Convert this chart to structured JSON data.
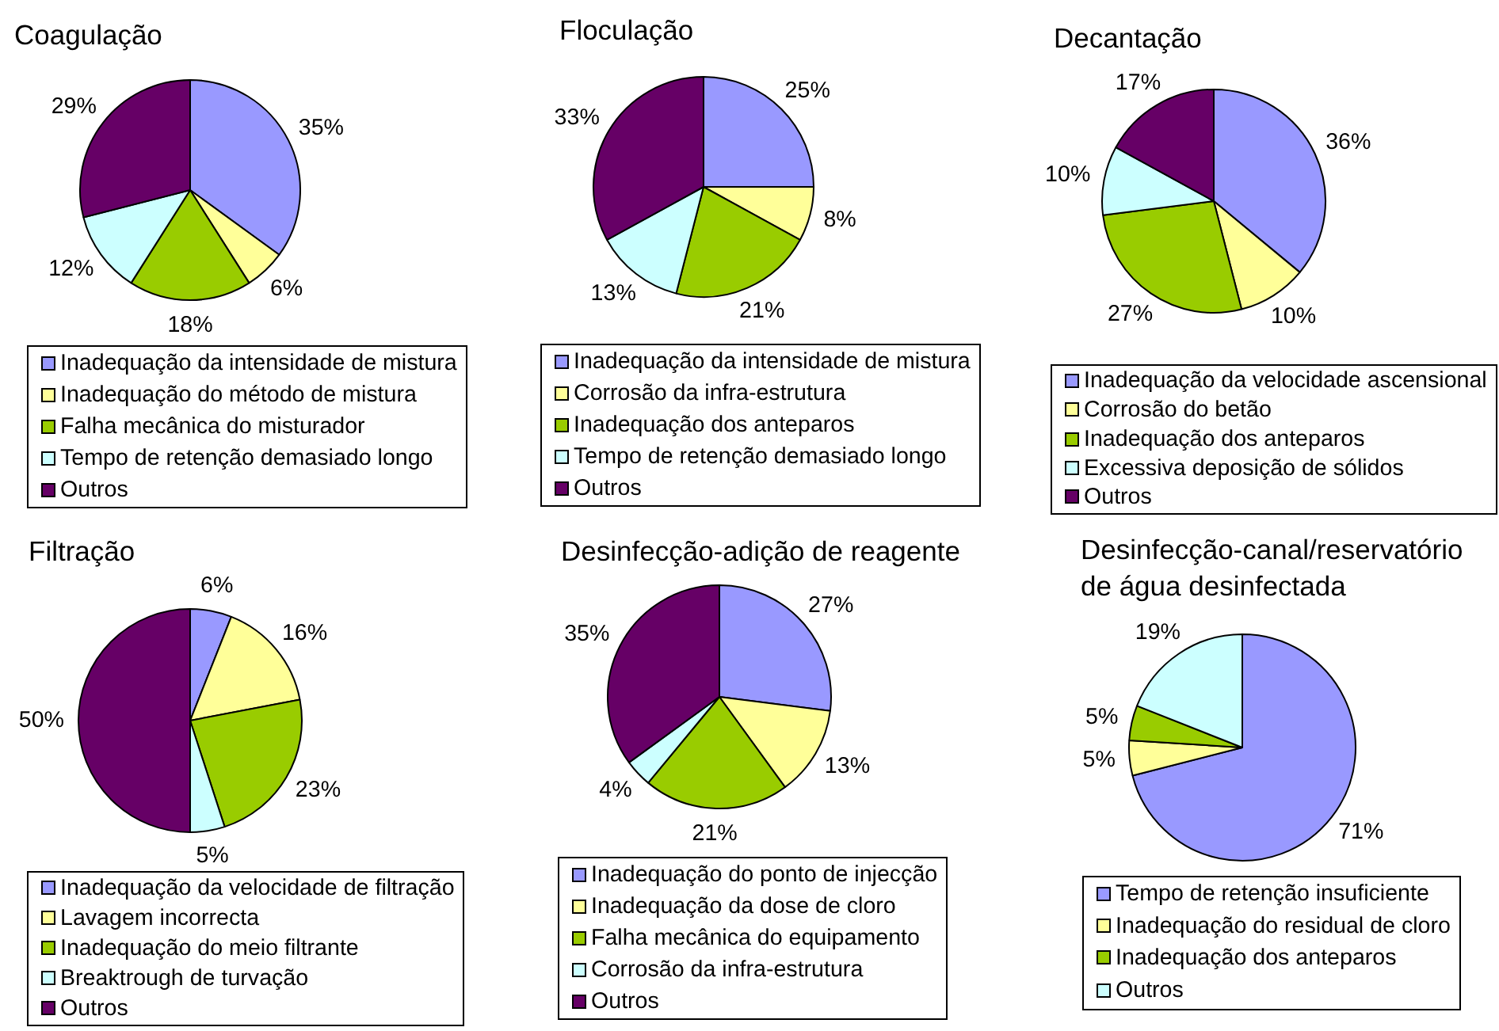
{
  "chart_data": [
    {
      "type": "pie",
      "title": "Coagulação",
      "categories": [
        "Inadequação da intensidade de mistura",
        "Inadequação do método de mistura",
        "Falha mecânica do misturador",
        "Tempo de retenção demasiado longo",
        "Outros"
      ],
      "values": [
        35,
        6,
        18,
        12,
        29
      ],
      "colors": [
        "#9999ff",
        "#ffff99",
        "#99cc00",
        "#ccffff",
        "#660066"
      ],
      "value_labels": [
        "35%",
        "6%",
        "18%",
        "12%",
        "29%"
      ],
      "legend": "bottom"
    },
    {
      "type": "pie",
      "title": "Floculação",
      "categories": [
        "Inadequação da intensidade de mistura",
        "Corrosão da infra-estrutura",
        "Inadequação dos anteparos",
        "Tempo de retenção demasiado longo",
        "Outros"
      ],
      "values": [
        25,
        8,
        21,
        13,
        33
      ],
      "colors": [
        "#9999ff",
        "#ffff99",
        "#99cc00",
        "#ccffff",
        "#660066"
      ],
      "value_labels": [
        "25%",
        "8%",
        "21%",
        "13%",
        "33%"
      ],
      "legend": "bottom"
    },
    {
      "type": "pie",
      "title": "Decantação",
      "categories": [
        "Inadequação da velocidade ascensional",
        "Corrosão do betão",
        "Inadequação dos anteparos",
        "Excessiva deposição de sólidos",
        "Outros"
      ],
      "values": [
        36,
        10,
        27,
        10,
        17
      ],
      "colors": [
        "#9999ff",
        "#ffff99",
        "#99cc00",
        "#ccffff",
        "#660066"
      ],
      "value_labels": [
        "36%",
        "10%",
        "27%",
        "10%",
        "17%"
      ],
      "legend": "bottom"
    },
    {
      "type": "pie",
      "title": "Filtração",
      "categories": [
        "Inadequação da velocidade de filtração",
        "Lavagem incorrecta",
        "Inadequação do meio filtrante",
        "Breaktrough de turvação",
        "Outros"
      ],
      "values": [
        6,
        16,
        23,
        5,
        50
      ],
      "colors": [
        "#9999ff",
        "#ffff99",
        "#99cc00",
        "#ccffff",
        "#660066"
      ],
      "value_labels": [
        "6%",
        "16%",
        "23%",
        "5%",
        "50%"
      ],
      "legend": "bottom"
    },
    {
      "type": "pie",
      "title": "Desinfecção-adição de reagente",
      "categories": [
        "Inadequação do ponto de injecção",
        "Inadequação da dose de cloro",
        "Falha mecânica do equipamento",
        "Corrosão da infra-estrutura",
        "Outros"
      ],
      "values": [
        27,
        13,
        21,
        4,
        35
      ],
      "colors": [
        "#9999ff",
        "#ffff99",
        "#99cc00",
        "#ccffff",
        "#660066"
      ],
      "value_labels": [
        "27%",
        "13%",
        "21%",
        "4%",
        "35%"
      ],
      "legend": "bottom"
    },
    {
      "type": "pie",
      "title": "Desinfecção-canal/reservatório de água desinfectada",
      "categories": [
        "Tempo de retenção insuficiente",
        "Inadequação do residual de cloro",
        "Inadequação dos anteparos",
        "Outros"
      ],
      "values": [
        71,
        5,
        5,
        19
      ],
      "colors": [
        "#9999ff",
        "#ffff99",
        "#99cc00",
        "#ccffff"
      ],
      "value_labels": [
        "71%",
        "5%",
        "5%",
        "19%"
      ],
      "legend": "bottom"
    }
  ]
}
